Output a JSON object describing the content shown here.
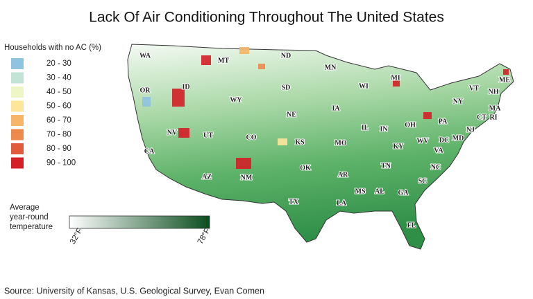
{
  "title": "Lack Of Air Conditioning Throughout The United States",
  "legend": {
    "title": "Households with no AC (%)",
    "items": [
      {
        "label": "20 - 30",
        "color": "#8fc3e0"
      },
      {
        "label": "30 - 40",
        "color": "#c2e3d6"
      },
      {
        "label": "40 - 50",
        "color": "#eef6c6"
      },
      {
        "label": "50 - 60",
        "color": "#fde59a"
      },
      {
        "label": "60 - 70",
        "color": "#f7b567"
      },
      {
        "label": "70 - 80",
        "color": "#ee8a4c"
      },
      {
        "label": "80 - 90",
        "color": "#e25a3c"
      },
      {
        "label": "90 - 100",
        "color": "#d41f26"
      }
    ]
  },
  "temperature_legend": {
    "title": "Average year-round temperature",
    "low": "32°F",
    "high": "78°F",
    "low_color": "#ffffff",
    "high_color": "#0b4d1f"
  },
  "states": [
    "WA",
    "OR",
    "CA",
    "NV",
    "ID",
    "MT",
    "WY",
    "UT",
    "AZ",
    "NM",
    "CO",
    "ND",
    "SD",
    "NE",
    "KS",
    "OK",
    "TX",
    "MN",
    "IA",
    "MO",
    "AR",
    "LA",
    "WI",
    "IL",
    "MI",
    "IN",
    "OH",
    "KY",
    "TN",
    "MS",
    "AL",
    "GA",
    "FL",
    "SC",
    "NC",
    "VA",
    "WV",
    "DC",
    "MD",
    "PA",
    "NY",
    "VT",
    "NH",
    "ME",
    "MA",
    "CT",
    "RI",
    "NJ"
  ],
  "source": "Source: University of Kansas, U.S. Geological Survey, Evan Comen"
}
